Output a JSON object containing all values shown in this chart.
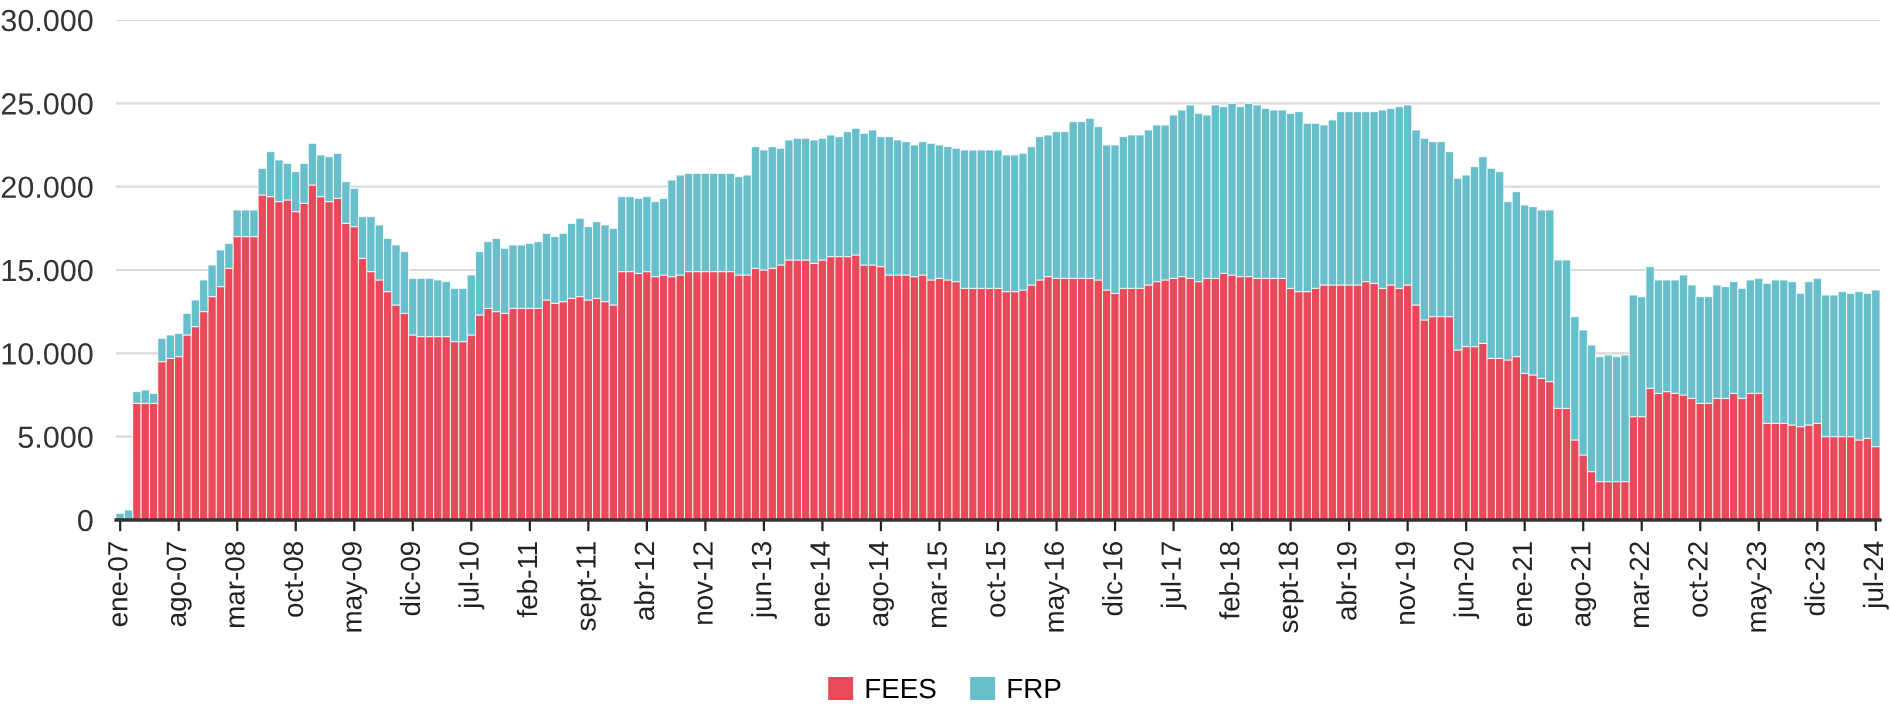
{
  "chart_data": {
    "type": "bar",
    "stacked": true,
    "categories": [
      "ene-07",
      null,
      null,
      null,
      null,
      null,
      null,
      "ago-07",
      null,
      null,
      null,
      null,
      null,
      null,
      "mar-08",
      null,
      null,
      null,
      null,
      null,
      null,
      "oct-08",
      null,
      null,
      null,
      null,
      null,
      null,
      "may-09",
      null,
      null,
      null,
      null,
      null,
      null,
      "dic-09",
      null,
      null,
      null,
      null,
      null,
      null,
      "jul-10",
      null,
      null,
      null,
      null,
      null,
      null,
      "feb-11",
      null,
      null,
      null,
      null,
      null,
      null,
      "sept-11",
      null,
      null,
      null,
      null,
      null,
      null,
      "abr-12",
      null,
      null,
      null,
      null,
      null,
      null,
      "nov-12",
      null,
      null,
      null,
      null,
      null,
      null,
      "jun-13",
      null,
      null,
      null,
      null,
      null,
      null,
      "ene-14",
      null,
      null,
      null,
      null,
      null,
      null,
      "ago-14",
      null,
      null,
      null,
      null,
      null,
      null,
      "mar-15",
      null,
      null,
      null,
      null,
      null,
      null,
      "oct-15",
      null,
      null,
      null,
      null,
      null,
      null,
      "may-16",
      null,
      null,
      null,
      null,
      null,
      null,
      "dic-16",
      null,
      null,
      null,
      null,
      null,
      null,
      "jul-17",
      null,
      null,
      null,
      null,
      null,
      null,
      "feb-18",
      null,
      null,
      null,
      null,
      null,
      null,
      "sept-18",
      null,
      null,
      null,
      null,
      null,
      null,
      "abr-19",
      null,
      null,
      null,
      null,
      null,
      null,
      "nov-19",
      null,
      null,
      null,
      null,
      null,
      null,
      "jun-20",
      null,
      null,
      null,
      null,
      null,
      null,
      "ene-21",
      null,
      null,
      null,
      null,
      null,
      null,
      "ago-21",
      null,
      null,
      null,
      null,
      null,
      null,
      "mar-22",
      null,
      null,
      null,
      null,
      null,
      null,
      "oct-22",
      null,
      null,
      null,
      null,
      null,
      null,
      "may-23",
      null,
      null,
      null,
      null,
      null,
      null,
      "dic-23",
      null,
      null,
      null,
      null,
      null,
      null,
      "jul-24"
    ],
    "series": [
      {
        "name": "FEES",
        "color": "#e84a5a",
        "values": [
          0,
          0,
          7000,
          7000,
          7000,
          9500,
          9700,
          9800,
          11100,
          11600,
          12500,
          13400,
          14000,
          15100,
          17000,
          17000,
          17000,
          19500,
          19400,
          19100,
          19200,
          18500,
          19000,
          20100,
          19400,
          19100,
          19300,
          17800,
          17600,
          15700,
          14900,
          14400,
          13700,
          12900,
          12400,
          11100,
          11000,
          11000,
          11000,
          11000,
          10700,
          10700,
          11100,
          12300,
          12700,
          12500,
          12400,
          12700,
          12700,
          12700,
          12700,
          13200,
          13000,
          13100,
          13300,
          13400,
          13200,
          13300,
          13100,
          12900,
          14900,
          14900,
          14800,
          14900,
          14600,
          14700,
          14600,
          14700,
          14900,
          14900,
          14900,
          14900,
          14900,
          14900,
          14700,
          14700,
          15100,
          15000,
          15100,
          15300,
          15600,
          15600,
          15600,
          15400,
          15600,
          15800,
          15800,
          15800,
          15900,
          15300,
          15300,
          15200,
          14700,
          14700,
          14700,
          14600,
          14700,
          14400,
          14500,
          14400,
          14300,
          13900,
          13900,
          13900,
          13900,
          13900,
          13700,
          13700,
          13800,
          14100,
          14400,
          14600,
          14500,
          14500,
          14500,
          14500,
          14500,
          14400,
          13800,
          13600,
          13900,
          13900,
          13900,
          14100,
          14300,
          14400,
          14500,
          14600,
          14500,
          14300,
          14500,
          14500,
          14800,
          14700,
          14600,
          14600,
          14500,
          14500,
          14500,
          14500,
          13900,
          13700,
          13700,
          13900,
          14100,
          14100,
          14100,
          14100,
          14100,
          14300,
          14200,
          13900,
          14100,
          13900,
          14100,
          12900,
          12000,
          12200,
          12200,
          12200,
          10200,
          10400,
          10400,
          10600,
          9700,
          9700,
          9600,
          9800,
          8800,
          8700,
          8500,
          8300,
          6700,
          6700,
          4800,
          3900,
          2900,
          2300,
          2300,
          2300,
          2300,
          6200,
          6200,
          7900,
          7600,
          7700,
          7600,
          7500,
          7300,
          7000,
          7000,
          7300,
          7300,
          7600,
          7300,
          7600,
          7600,
          5800,
          5800,
          5800,
          5700,
          5600,
          5700,
          5800,
          5000,
          5000,
          5000,
          5000,
          4800,
          4900,
          4400
        ]
      },
      {
        "name": "FRP",
        "color": "#67bfcb",
        "values": [
          400,
          600,
          700,
          800,
          600,
          1400,
          1400,
          1400,
          1300,
          1600,
          1900,
          1900,
          2200,
          1500,
          1600,
          1600,
          1600,
          1600,
          2700,
          2500,
          2200,
          2400,
          2400,
          2500,
          2500,
          2700,
          2700,
          2500,
          2300,
          2500,
          3300,
          3300,
          3200,
          3600,
          3700,
          3400,
          3500,
          3500,
          3400,
          3300,
          3200,
          3200,
          3600,
          3800,
          4000,
          4400,
          3900,
          3800,
          3800,
          3900,
          4000,
          4000,
          4000,
          4100,
          4500,
          4700,
          4400,
          4600,
          4600,
          4600,
          4500,
          4500,
          4500,
          4500,
          4500,
          4600,
          5800,
          6000,
          5900,
          5900,
          5900,
          5900,
          5900,
          5900,
          5900,
          6000,
          7300,
          7200,
          7300,
          7000,
          7200,
          7300,
          7300,
          7400,
          7300,
          7300,
          7200,
          7500,
          7600,
          7900,
          8100,
          7800,
          8300,
          8100,
          8000,
          7900,
          8000,
          8200,
          8000,
          8000,
          8000,
          8300,
          8300,
          8300,
          8300,
          8300,
          8200,
          8200,
          8200,
          8300,
          8600,
          8500,
          8800,
          8800,
          9400,
          9400,
          9600,
          9200,
          8700,
          8900,
          9100,
          9200,
          9200,
          9300,
          9400,
          9300,
          9800,
          10000,
          10400,
          10100,
          9800,
          10400,
          10000,
          10300,
          10200,
          10400,
          10400,
          10200,
          10100,
          10100,
          10500,
          10800,
          10100,
          9900,
          9600,
          9900,
          10400,
          10400,
          10400,
          10200,
          10300,
          10700,
          10600,
          10900,
          10800,
          10500,
          10900,
          10500,
          10500,
          9900,
          10300,
          10300,
          10800,
          11200,
          11400,
          11200,
          9500,
          9900,
          10100,
          10100,
          10100,
          10300,
          8900,
          8900,
          7400,
          7500,
          7600,
          7500,
          7600,
          7500,
          7600,
          7300,
          7200,
          7300,
          6800,
          6700,
          6800,
          7200,
          6800,
          6400,
          6400,
          6800,
          6700,
          6700,
          6600,
          6800,
          6900,
          8400,
          8600,
          8600,
          8600,
          8000,
          8600,
          8700,
          8500,
          8500,
          8700,
          8600,
          8900,
          8700,
          9400
        ]
      }
    ],
    "ylim": [
      0,
      30000
    ],
    "yticks": [
      0,
      {
        "value": 5000,
        "label": "5.000"
      },
      {
        "value": 10000,
        "label": "10.000"
      },
      {
        "value": 15000,
        "label": "15.000"
      },
      {
        "value": 20000,
        "label": "20.000"
      },
      {
        "value": 25000,
        "label": "25.000"
      },
      {
        "value": 30000,
        "label": "30.000"
      }
    ],
    "grid": "y",
    "legend": "bottom"
  }
}
